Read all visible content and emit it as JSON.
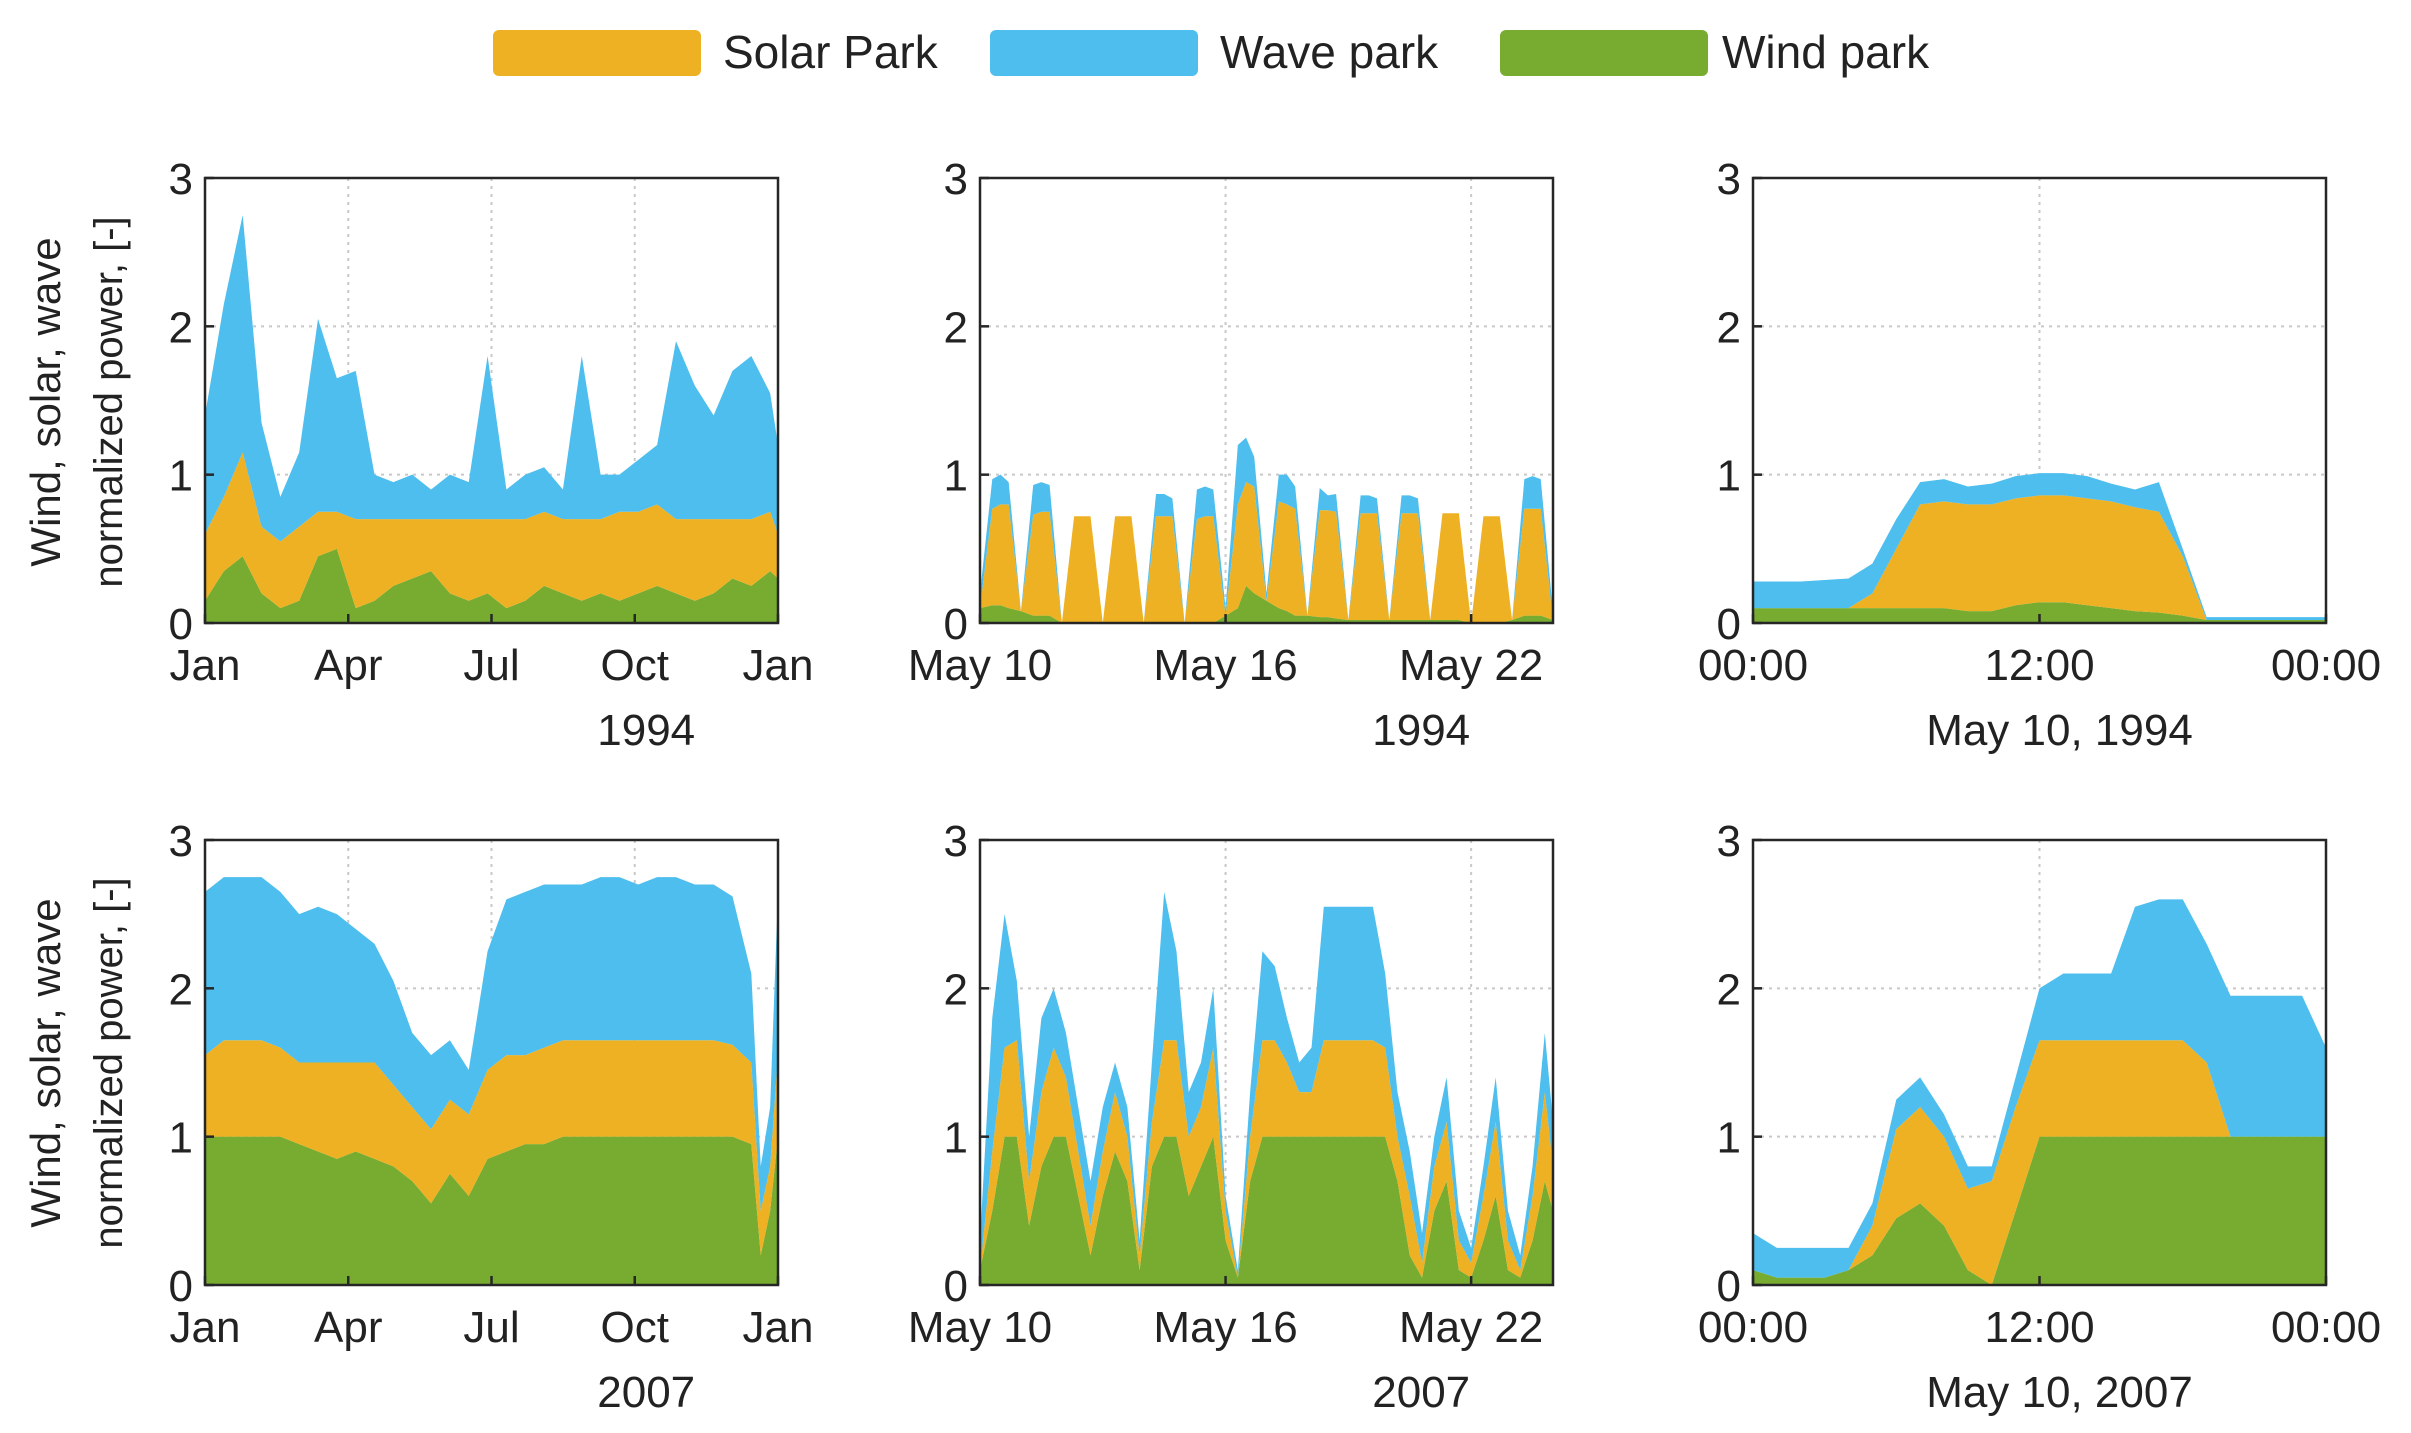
{
  "colors": {
    "solar": "#EEB123",
    "wave": "#4DBEEE",
    "wind": "#77AC30",
    "axis": "#262626",
    "grid": "#C8C8C8",
    "text": "#222222"
  },
  "legend": {
    "placement": "top-center",
    "items": [
      {
        "label": "Solar Park",
        "color": "#EEB123"
      },
      {
        "label": "Wave park",
        "color": "#4DBEEE"
      },
      {
        "label": "Wind park",
        "color": "#77AC30"
      }
    ]
  },
  "ylabel": {
    "line1": "Wind, solar, wave",
    "line2": "normalized power, [-]"
  },
  "chart_data": [
    {
      "type": "area",
      "stacked": true,
      "title": "",
      "xlabel": "1994",
      "ylabel": "Wind, solar, wave normalized power, [-]",
      "ylim": [
        0,
        3
      ],
      "yticks": [
        "0",
        "1",
        "2",
        "3"
      ],
      "xticks": [
        "Jan",
        "Apr",
        "Jul",
        "Oct",
        "Jan"
      ],
      "xlim": [
        0,
        365
      ],
      "x": [
        0,
        12,
        24,
        36,
        48,
        60,
        72,
        84,
        96,
        108,
        120,
        132,
        144,
        156,
        168,
        180,
        192,
        204,
        216,
        228,
        240,
        252,
        264,
        276,
        288,
        300,
        312,
        324,
        336,
        348,
        360,
        365
      ],
      "series": [
        {
          "name": "Wind park",
          "values": [
            0.15,
            0.35,
            0.45,
            0.2,
            0.1,
            0.15,
            0.45,
            0.5,
            0.1,
            0.15,
            0.25,
            0.3,
            0.35,
            0.2,
            0.15,
            0.2,
            0.1,
            0.15,
            0.25,
            0.2,
            0.15,
            0.2,
            0.15,
            0.2,
            0.25,
            0.2,
            0.15,
            0.2,
            0.3,
            0.25,
            0.35,
            0.3
          ]
        },
        {
          "name": "Solar Park",
          "values": [
            0.45,
            0.5,
            0.7,
            0.45,
            0.45,
            0.5,
            0.3,
            0.25,
            0.6,
            0.55,
            0.45,
            0.4,
            0.35,
            0.5,
            0.55,
            0.5,
            0.6,
            0.55,
            0.5,
            0.5,
            0.55,
            0.5,
            0.6,
            0.55,
            0.55,
            0.5,
            0.55,
            0.5,
            0.4,
            0.45,
            0.4,
            0.3
          ]
        },
        {
          "name": "Wave park",
          "values": [
            0.8,
            1.3,
            1.6,
            0.7,
            0.3,
            0.5,
            1.3,
            0.9,
            1.0,
            0.3,
            0.25,
            0.3,
            0.2,
            0.3,
            0.25,
            1.1,
            0.2,
            0.3,
            0.3,
            0.2,
            1.1,
            0.3,
            0.25,
            0.35,
            0.4,
            1.2,
            0.9,
            0.7,
            1.0,
            1.1,
            0.8,
            0.6
          ]
        }
      ]
    },
    {
      "type": "area",
      "stacked": true,
      "title": "",
      "xlabel": "1994",
      "ylabel": "",
      "ylim": [
        0,
        3
      ],
      "yticks": [
        "0",
        "1",
        "2",
        "3"
      ],
      "xticks": [
        "May 10",
        "May 16",
        "May 22"
      ],
      "xlim": [
        0,
        14
      ],
      "x": [
        0,
        0.3,
        0.5,
        0.7,
        1,
        1.3,
        1.5,
        1.7,
        2,
        2.3,
        2.5,
        2.7,
        3,
        3.3,
        3.5,
        3.7,
        4,
        4.3,
        4.5,
        4.7,
        5,
        5.3,
        5.5,
        5.7,
        6,
        6.3,
        6.5,
        6.7,
        7,
        7.3,
        7.5,
        7.7,
        8,
        8.3,
        8.5,
        8.7,
        9,
        9.3,
        9.5,
        9.7,
        10,
        10.3,
        10.5,
        10.7,
        11,
        11.3,
        11.5,
        11.7,
        12,
        12.3,
        12.5,
        12.7,
        13,
        13.3,
        13.5,
        13.7,
        14
      ],
      "series": [
        {
          "name": "Wind park",
          "values": [
            0.1,
            0.12,
            0.12,
            0.1,
            0.08,
            0.05,
            0.05,
            0.05,
            0,
            0,
            0,
            0,
            0,
            0,
            0,
            0,
            0,
            0,
            0,
            0,
            0,
            0,
            0,
            0,
            0.05,
            0.1,
            0.25,
            0.2,
            0.15,
            0.1,
            0.08,
            0.05,
            0.05,
            0.04,
            0.04,
            0.03,
            0.02,
            0.02,
            0.02,
            0.02,
            0.02,
            0.02,
            0.02,
            0.02,
            0.02,
            0.02,
            0.02,
            0.02,
            0,
            0,
            0,
            0,
            0.02,
            0.05,
            0.05,
            0.05,
            0.02
          ]
        },
        {
          "name": "Solar Park",
          "values": [
            0,
            0.65,
            0.68,
            0.7,
            0,
            0.68,
            0.7,
            0.7,
            0,
            0.72,
            0.72,
            0.72,
            0,
            0.72,
            0.72,
            0.72,
            0,
            0.72,
            0.72,
            0.72,
            0,
            0.7,
            0.72,
            0.72,
            0,
            0.7,
            0.7,
            0.72,
            0,
            0.72,
            0.72,
            0.72,
            0,
            0.72,
            0.72,
            0.72,
            0,
            0.72,
            0.72,
            0.72,
            0,
            0.72,
            0.72,
            0.72,
            0,
            0.72,
            0.72,
            0.72,
            0,
            0.72,
            0.72,
            0.72,
            0,
            0.72,
            0.72,
            0.72,
            0
          ]
        },
        {
          "name": "Wave park",
          "values": [
            0.1,
            0.2,
            0.2,
            0.15,
            0,
            0.2,
            0.2,
            0.18,
            0,
            0,
            0,
            0,
            0,
            0,
            0,
            0,
            0,
            0.15,
            0.15,
            0.12,
            0,
            0.2,
            0.2,
            0.18,
            0.05,
            0.4,
            0.3,
            0.2,
            0.05,
            0.18,
            0.2,
            0.15,
            0,
            0.15,
            0.1,
            0.12,
            0,
            0.12,
            0.12,
            0.1,
            0,
            0.12,
            0.12,
            0.1,
            0,
            0,
            0,
            0,
            0,
            0,
            0,
            0,
            0,
            0.2,
            0.22,
            0.2,
            0.05
          ]
        }
      ]
    },
    {
      "type": "area",
      "stacked": true,
      "title": "",
      "xlabel": "May 10, 1994",
      "ylabel": "",
      "ylim": [
        0,
        3
      ],
      "yticks": [
        "0",
        "1",
        "2",
        "3"
      ],
      "xticks": [
        "00:00",
        "12:00",
        "00:00"
      ],
      "xlim": [
        0,
        24
      ],
      "x": [
        0,
        2,
        4,
        5,
        6,
        7,
        8,
        9,
        10,
        11,
        12,
        13,
        14,
        15,
        16,
        17,
        18,
        19,
        20,
        22,
        24
      ],
      "series": [
        {
          "name": "Wind park",
          "values": [
            0.1,
            0.1,
            0.1,
            0.1,
            0.1,
            0.1,
            0.1,
            0.08,
            0.08,
            0.12,
            0.14,
            0.14,
            0.12,
            0.1,
            0.08,
            0.07,
            0.05,
            0.02,
            0.02,
            0.02,
            0.02
          ]
        },
        {
          "name": "Solar Park",
          "values": [
            0,
            0,
            0,
            0.1,
            0.4,
            0.7,
            0.72,
            0.72,
            0.72,
            0.72,
            0.72,
            0.72,
            0.72,
            0.72,
            0.7,
            0.68,
            0.4,
            0,
            0,
            0,
            0
          ]
        },
        {
          "name": "Wave park",
          "values": [
            0.18,
            0.18,
            0.2,
            0.2,
            0.2,
            0.15,
            0.15,
            0.12,
            0.14,
            0.15,
            0.15,
            0.15,
            0.15,
            0.12,
            0.12,
            0.2,
            0.05,
            0.02,
            0.02,
            0.02,
            0.02
          ]
        }
      ]
    },
    {
      "type": "area",
      "stacked": true,
      "title": "",
      "xlabel": "2007",
      "ylabel": "Wind, solar, wave normalized power, [-]",
      "ylim": [
        0,
        3
      ],
      "yticks": [
        "0",
        "1",
        "2",
        "3"
      ],
      "xticks": [
        "Jan",
        "Apr",
        "Jul",
        "Oct",
        "Jan"
      ],
      "xlim": [
        0,
        365
      ],
      "x": [
        0,
        12,
        24,
        36,
        48,
        60,
        72,
        84,
        96,
        108,
        120,
        132,
        144,
        156,
        168,
        180,
        192,
        204,
        216,
        228,
        240,
        252,
        264,
        276,
        288,
        300,
        312,
        324,
        336,
        348,
        354,
        360,
        365
      ],
      "series": [
        {
          "name": "Wind park",
          "values": [
            1,
            1,
            1,
            1,
            1,
            0.95,
            0.9,
            0.85,
            0.9,
            0.85,
            0.8,
            0.7,
            0.55,
            0.75,
            0.6,
            0.85,
            0.9,
            0.95,
            0.95,
            1,
            1,
            1,
            1,
            1,
            1,
            1,
            1,
            1,
            1,
            0.95,
            0.2,
            0.5,
            1
          ]
        },
        {
          "name": "Solar Park",
          "values": [
            0.55,
            0.65,
            0.65,
            0.65,
            0.6,
            0.55,
            0.6,
            0.65,
            0.6,
            0.65,
            0.55,
            0.5,
            0.5,
            0.5,
            0.55,
            0.6,
            0.65,
            0.6,
            0.65,
            0.65,
            0.65,
            0.65,
            0.65,
            0.65,
            0.65,
            0.65,
            0.65,
            0.65,
            0.62,
            0.55,
            0.3,
            0.3,
            0.55
          ]
        },
        {
          "name": "Wave park",
          "values": [
            1.1,
            1.1,
            1.1,
            1.1,
            1.05,
            1,
            1.05,
            1.0,
            0.9,
            0.8,
            0.7,
            0.5,
            0.5,
            0.4,
            0.3,
            0.8,
            1.05,
            1.1,
            1.1,
            1.05,
            1.05,
            1.1,
            1.1,
            1.05,
            1.1,
            1.1,
            1.05,
            1.05,
            1.0,
            0.6,
            0.3,
            0.4,
            1.1
          ]
        }
      ]
    },
    {
      "type": "area",
      "stacked": true,
      "title": "",
      "xlabel": "2007",
      "ylabel": "",
      "ylim": [
        0,
        3
      ],
      "yticks": [
        "0",
        "1",
        "2",
        "3"
      ],
      "xticks": [
        "May 10",
        "May 16",
        "May 22"
      ],
      "xlim": [
        0,
        14
      ],
      "x": [
        0,
        0.3,
        0.6,
        0.9,
        1.2,
        1.5,
        1.8,
        2.1,
        2.4,
        2.7,
        3,
        3.3,
        3.6,
        3.9,
        4.2,
        4.5,
        4.8,
        5.1,
        5.4,
        5.7,
        6,
        6.3,
        6.6,
        6.9,
        7.2,
        7.5,
        7.8,
        8.1,
        8.4,
        8.7,
        9,
        9.3,
        9.6,
        9.9,
        10.2,
        10.5,
        10.8,
        11.1,
        11.4,
        11.7,
        12,
        12.3,
        12.6,
        12.9,
        13.2,
        13.5,
        13.8,
        14
      ],
      "series": [
        {
          "name": "Wind park",
          "values": [
            0.1,
            0.5,
            1,
            1,
            0.4,
            0.8,
            1,
            1,
            0.6,
            0.2,
            0.6,
            0.9,
            0.7,
            0.1,
            0.8,
            1,
            1,
            0.6,
            0.8,
            1,
            0.3,
            0.05,
            0.7,
            1,
            1,
            1,
            1,
            1,
            1,
            1,
            1,
            1,
            1,
            1,
            0.7,
            0.2,
            0.05,
            0.5,
            0.7,
            0.1,
            0.05,
            0.3,
            0.6,
            0.1,
            0.05,
            0.3,
            0.7,
            0.5
          ]
        },
        {
          "name": "Solar Park",
          "values": [
            0,
            0.4,
            0.6,
            0.65,
            0.3,
            0.5,
            0.6,
            0.4,
            0.3,
            0.2,
            0.3,
            0.4,
            0.3,
            0.1,
            0.3,
            0.65,
            0.65,
            0.4,
            0.4,
            0.6,
            0.2,
            0,
            0.3,
            0.65,
            0.65,
            0.5,
            0.3,
            0.3,
            0.65,
            0.65,
            0.65,
            0.65,
            0.65,
            0.6,
            0.3,
            0.4,
            0.1,
            0.3,
            0.4,
            0.2,
            0.1,
            0.3,
            0.5,
            0.2,
            0.05,
            0.3,
            0.6,
            0.3
          ]
        },
        {
          "name": "Wave park",
          "values": [
            0.2,
            0.9,
            0.9,
            0.4,
            0.3,
            0.5,
            0.4,
            0.3,
            0.3,
            0.3,
            0.3,
            0.2,
            0.2,
            0.1,
            0.4,
            1.0,
            0.6,
            0.3,
            0.3,
            0.4,
            0.1,
            0.05,
            0.3,
            0.6,
            0.5,
            0.3,
            0.2,
            0.3,
            0.9,
            0.9,
            0.9,
            0.9,
            0.9,
            0.5,
            0.3,
            0.3,
            0.2,
            0.2,
            0.3,
            0.2,
            0.1,
            0.2,
            0.3,
            0.2,
            0.1,
            0.2,
            0.4,
            0.3
          ]
        }
      ]
    },
    {
      "type": "area",
      "stacked": true,
      "title": "",
      "xlabel": "May 10, 2007",
      "ylabel": "",
      "ylim": [
        0,
        3
      ],
      "yticks": [
        "0",
        "1",
        "2",
        "3"
      ],
      "xticks": [
        "00:00",
        "12:00",
        "00:00"
      ],
      "xlim": [
        0,
        24
      ],
      "x": [
        0,
        1,
        2,
        3,
        4,
        5,
        6,
        7,
        8,
        9,
        10,
        11,
        12,
        13,
        14,
        15,
        16,
        17,
        18,
        19,
        20,
        21,
        22,
        23,
        24
      ],
      "series": [
        {
          "name": "Wind park",
          "values": [
            0.1,
            0.05,
            0.05,
            0.05,
            0.1,
            0.2,
            0.45,
            0.55,
            0.4,
            0.1,
            0,
            0.5,
            1,
            1,
            1,
            1,
            1,
            1,
            1,
            1,
            1,
            1,
            1,
            1,
            1
          ]
        },
        {
          "name": "Solar Park",
          "values": [
            0,
            0,
            0,
            0,
            0,
            0.2,
            0.6,
            0.65,
            0.6,
            0.55,
            0.7,
            0.7,
            0.65,
            0.65,
            0.65,
            0.65,
            0.65,
            0.65,
            0.65,
            0.5,
            0,
            0,
            0,
            0,
            0
          ]
        },
        {
          "name": "Wave park",
          "values": [
            0.25,
            0.2,
            0.2,
            0.2,
            0.15,
            0.15,
            0.2,
            0.2,
            0.15,
            0.15,
            0.1,
            0.2,
            0.35,
            0.45,
            0.45,
            0.45,
            0.9,
            0.95,
            0.95,
            0.8,
            0.95,
            0.95,
            0.95,
            0.95,
            0.6
          ]
        }
      ]
    }
  ]
}
